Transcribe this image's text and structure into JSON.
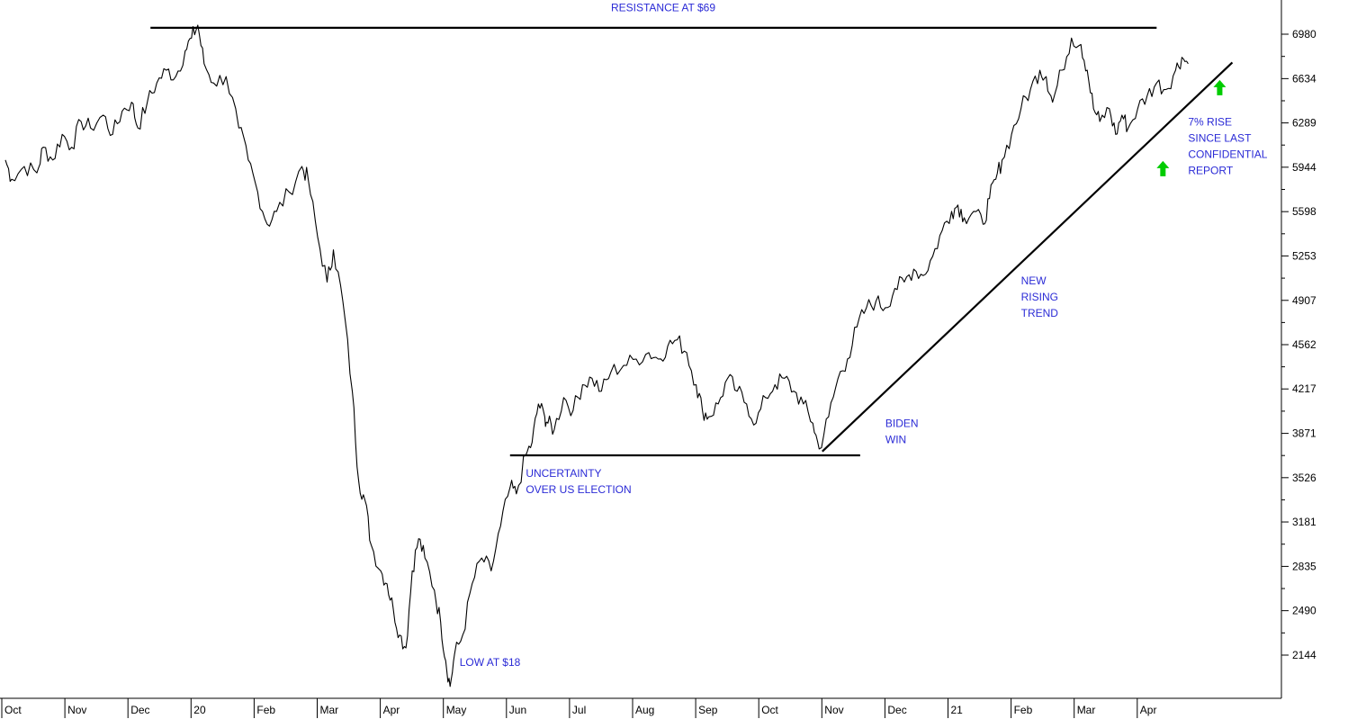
{
  "chart_data": {
    "type": "line",
    "title": "",
    "xlabel": "",
    "ylabel": "",
    "ylim": [
      1800,
      7200
    ],
    "y_ticks": [
      2144,
      2490,
      2835,
      3181,
      3526,
      3871,
      4217,
      4562,
      4907,
      5253,
      5598,
      5944,
      6289,
      6634,
      6980
    ],
    "x_ticks": [
      {
        "label": "Oct",
        "month": 0
      },
      {
        "label": "Nov",
        "month": 1
      },
      {
        "label": "Dec",
        "month": 2
      },
      {
        "label": "20",
        "month": 3
      },
      {
        "label": "Feb",
        "month": 4
      },
      {
        "label": "Mar",
        "month": 5
      },
      {
        "label": "Apr",
        "month": 6
      },
      {
        "label": "May",
        "month": 7
      },
      {
        "label": "Jun",
        "month": 8
      },
      {
        "label": "Jul",
        "month": 9
      },
      {
        "label": "Aug",
        "month": 10
      },
      {
        "label": "Sep",
        "month": 11
      },
      {
        "label": "Oct",
        "month": 12
      },
      {
        "label": "Nov",
        "month": 13
      },
      {
        "label": "Dec",
        "month": 14
      },
      {
        "label": "21",
        "month": 15
      },
      {
        "label": "Feb",
        "month": 16
      },
      {
        "label": "Mar",
        "month": 17
      },
      {
        "label": "Apr",
        "month": 18
      }
    ],
    "series": [
      {
        "color": "#000000",
        "points": [
          [
            0.0,
            6000
          ],
          [
            0.1,
            5850
          ],
          [
            0.3,
            5950
          ],
          [
            0.5,
            5900
          ],
          [
            0.6,
            6100
          ],
          [
            0.75,
            6000
          ],
          [
            0.9,
            6200
          ],
          [
            1.05,
            6100
          ],
          [
            1.2,
            6300
          ],
          [
            1.35,
            6250
          ],
          [
            1.55,
            6350
          ],
          [
            1.7,
            6200
          ],
          [
            1.85,
            6380
          ],
          [
            2.0,
            6450
          ],
          [
            2.1,
            6250
          ],
          [
            2.25,
            6450
          ],
          [
            2.4,
            6600
          ],
          [
            2.55,
            6700
          ],
          [
            2.7,
            6650
          ],
          [
            2.85,
            6850
          ],
          [
            2.95,
            6950
          ],
          [
            3.05,
            7050
          ],
          [
            3.15,
            6750
          ],
          [
            3.3,
            6600
          ],
          [
            3.5,
            6650
          ],
          [
            3.7,
            6250
          ],
          [
            3.85,
            6000
          ],
          [
            4.0,
            5750
          ],
          [
            4.15,
            5500
          ],
          [
            4.3,
            5600
          ],
          [
            4.5,
            5750
          ],
          [
            4.7,
            5950
          ],
          [
            4.8,
            5850
          ],
          [
            4.95,
            5400
          ],
          [
            5.1,
            5050
          ],
          [
            5.2,
            5300
          ],
          [
            5.35,
            4900
          ],
          [
            5.5,
            4200
          ],
          [
            5.6,
            3500
          ],
          [
            5.7,
            3350
          ],
          [
            5.8,
            3000
          ],
          [
            5.95,
            2800
          ],
          [
            6.05,
            2700
          ],
          [
            6.15,
            2500
          ],
          [
            6.25,
            2300
          ],
          [
            6.35,
            2200
          ],
          [
            6.45,
            2800
          ],
          [
            6.55,
            3050
          ],
          [
            6.65,
            2900
          ],
          [
            6.8,
            2650
          ],
          [
            6.9,
            2400
          ],
          [
            6.98,
            2100
          ],
          [
            7.05,
            1900
          ],
          [
            7.12,
            2150
          ],
          [
            7.25,
            2300
          ],
          [
            7.4,
            2700
          ],
          [
            7.55,
            2900
          ],
          [
            7.7,
            2800
          ],
          [
            7.85,
            3150
          ],
          [
            8.0,
            3450
          ],
          [
            8.1,
            3400
          ],
          [
            8.25,
            3700
          ],
          [
            8.35,
            3800
          ],
          [
            8.45,
            4100
          ],
          [
            8.55,
            4000
          ],
          [
            8.6,
            3950
          ],
          [
            8.7,
            3900
          ],
          [
            8.85,
            4150
          ],
          [
            9.0,
            4050
          ],
          [
            9.15,
            4250
          ],
          [
            9.3,
            4300
          ],
          [
            9.45,
            4200
          ],
          [
            9.6,
            4350
          ],
          [
            9.8,
            4400
          ],
          [
            10.0,
            4450
          ],
          [
            10.2,
            4500
          ],
          [
            10.35,
            4450
          ],
          [
            10.5,
            4550
          ],
          [
            10.65,
            4600
          ],
          [
            10.8,
            4500
          ],
          [
            10.95,
            4250
          ],
          [
            11.05,
            4050
          ],
          [
            11.15,
            4000
          ],
          [
            11.3,
            4100
          ],
          [
            11.45,
            4300
          ],
          [
            11.6,
            4200
          ],
          [
            11.75,
            4100
          ],
          [
            11.9,
            3950
          ],
          [
            12.05,
            4150
          ],
          [
            12.2,
            4250
          ],
          [
            12.35,
            4300
          ],
          [
            12.5,
            4200
          ],
          [
            12.65,
            4100
          ],
          [
            12.8,
            3950
          ],
          [
            12.9,
            3750
          ],
          [
            13.05,
            4000
          ],
          [
            13.2,
            4300
          ],
          [
            13.35,
            4450
          ],
          [
            13.5,
            4700
          ],
          [
            13.65,
            4850
          ],
          [
            13.8,
            4900
          ],
          [
            13.95,
            4850
          ],
          [
            14.1,
            5000
          ],
          [
            14.25,
            5050
          ],
          [
            14.4,
            5150
          ],
          [
            14.55,
            5100
          ],
          [
            14.7,
            5250
          ],
          [
            14.85,
            5450
          ],
          [
            15.0,
            5600
          ],
          [
            15.1,
            5650
          ],
          [
            15.2,
            5550
          ],
          [
            15.35,
            5600
          ],
          [
            15.5,
            5500
          ],
          [
            15.6,
            5700
          ],
          [
            15.7,
            5850
          ],
          [
            15.8,
            6000
          ],
          [
            15.95,
            6200
          ],
          [
            16.1,
            6400
          ],
          [
            16.25,
            6550
          ],
          [
            16.4,
            6700
          ],
          [
            16.5,
            6650
          ],
          [
            16.6,
            6450
          ],
          [
            16.75,
            6700
          ],
          [
            16.9,
            6950
          ],
          [
            17.05,
            6900
          ],
          [
            17.15,
            6700
          ],
          [
            17.25,
            6400
          ],
          [
            17.35,
            6300
          ],
          [
            17.5,
            6400
          ],
          [
            17.6,
            6200
          ],
          [
            17.7,
            6350
          ],
          [
            17.8,
            6250
          ],
          [
            17.95,
            6400
          ],
          [
            18.1,
            6500
          ],
          [
            18.25,
            6600
          ],
          [
            18.4,
            6550
          ],
          [
            18.55,
            6700
          ],
          [
            18.65,
            6800
          ],
          [
            18.75,
            6750
          ]
        ]
      }
    ],
    "trendlines": [
      {
        "name": "resistance",
        "x1": 2.3,
        "y1": 7030,
        "x2": 18.25,
        "y2": 7030
      },
      {
        "name": "support",
        "x1": 8.0,
        "y1": 3700,
        "x2": 13.55,
        "y2": 3700
      },
      {
        "name": "rising-trend",
        "x1": 12.95,
        "y1": 3730,
        "x2": 19.45,
        "y2": 6760
      }
    ],
    "annotations": [
      {
        "lines": [
          "RESISTANCE AT $69"
        ],
        "x": 9.6,
        "y": 7160,
        "color": "#2b2bd6"
      },
      {
        "lines": [
          "LOW AT $18"
        ],
        "x": 7.2,
        "y": 2060,
        "color": "#2b2bd6"
      },
      {
        "lines": [
          "UNCERTAINTY",
          "OVER US ELECTION"
        ],
        "x": 8.25,
        "y": 3530,
        "color": "#2b2bd6"
      },
      {
        "lines": [
          "BIDEN",
          "WIN"
        ],
        "x": 13.95,
        "y": 3920,
        "color": "#2b2bd6"
      },
      {
        "lines": [
          "NEW",
          "RISING",
          "TREND"
        ],
        "x": 16.1,
        "y": 5030,
        "color": "#2b2bd6"
      },
      {
        "lines": [
          "7% RISE",
          "SINCE LAST",
          "CONFIDENTIAL",
          "REPORT"
        ],
        "x": 18.75,
        "y": 6270,
        "color": "#2b2bd6"
      }
    ],
    "arrows": [
      {
        "name": "arrow-1",
        "x": 18.35,
        "y": 5930,
        "color": "#00cc00"
      },
      {
        "name": "arrow-2",
        "x": 19.25,
        "y": 6560,
        "color": "#00cc00"
      }
    ],
    "grid": false,
    "legend": "none"
  }
}
